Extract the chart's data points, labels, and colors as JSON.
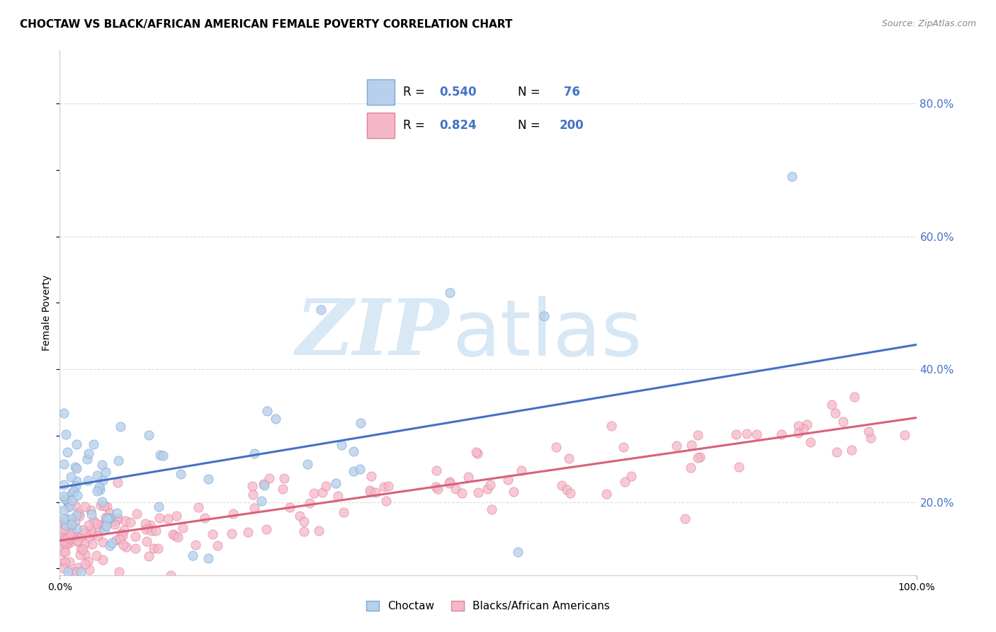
{
  "title": "CHOCTAW VS BLACK/AFRICAN AMERICAN FEMALE POVERTY CORRELATION CHART",
  "source": "Source: ZipAtlas.com",
  "ylabel": "Female Poverty",
  "ytick_values": [
    0.2,
    0.4,
    0.6,
    0.8
  ],
  "ytick_labels": [
    "20.0%",
    "40.0%",
    "60.0%",
    "80.0%"
  ],
  "xlim": [
    0.0,
    1.0
  ],
  "ylim": [
    0.09,
    0.88
  ],
  "color_choctaw_fill": "#b8d0eb",
  "color_choctaw_edge": "#7aaad4",
  "color_black_fill": "#f5b8c8",
  "color_black_edge": "#e08098",
  "color_line_choctaw": "#4472c4",
  "color_line_black": "#d9607a",
  "color_text_blue": "#4472c4",
  "color_grid": "#cccccc",
  "color_bg": "#ffffff",
  "watermark_zip_color": "#d8e8f5",
  "watermark_atlas_color": "#c8ddf0",
  "choctaw_intercept": 0.222,
  "choctaw_slope": 0.215,
  "black_intercept": 0.142,
  "black_slope": 0.185,
  "legend_box_color": "#f0f0f0",
  "legend_box_edge": "#cccccc"
}
